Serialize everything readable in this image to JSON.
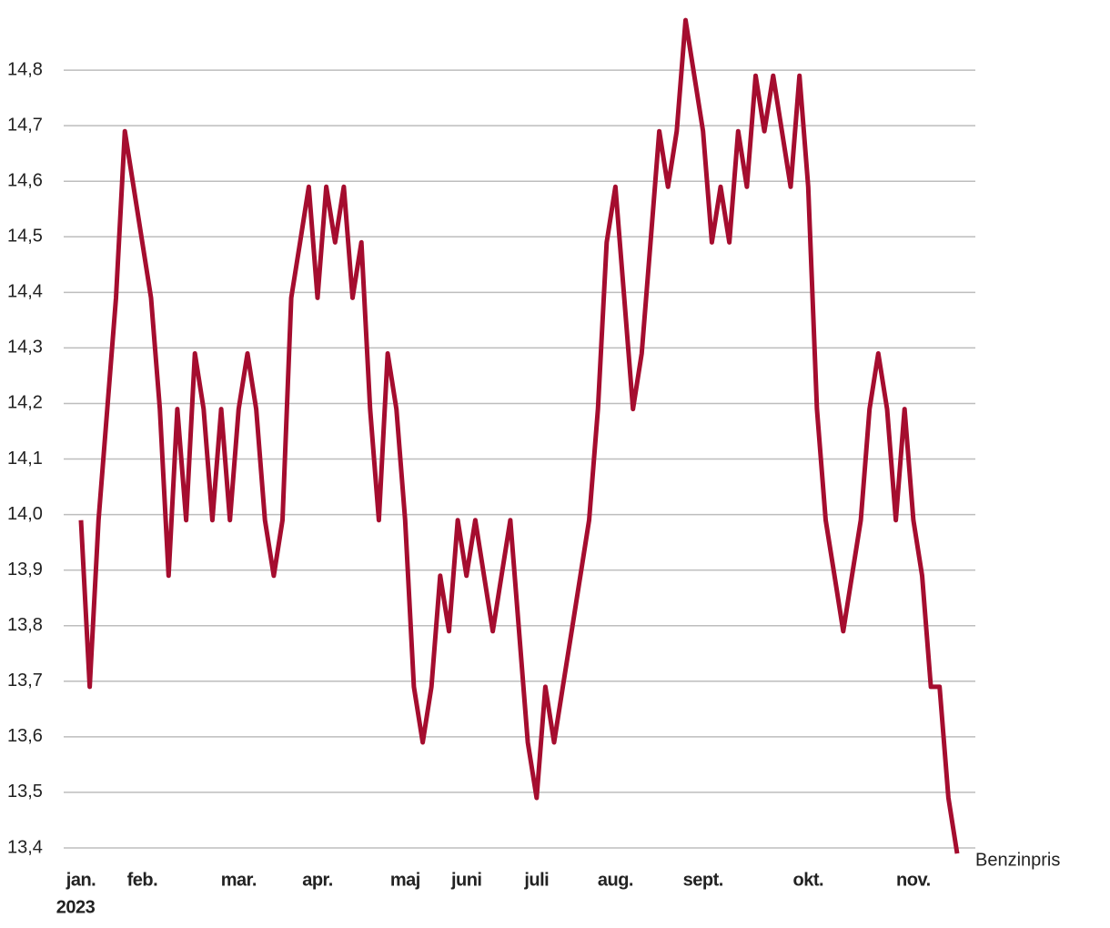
{
  "chart_data": {
    "type": "line",
    "categories": [
      "jan.",
      null,
      null,
      null,
      null,
      null,
      null,
      "feb.",
      null,
      null,
      null,
      null,
      null,
      null,
      null,
      null,
      null,
      null,
      "mar.",
      null,
      null,
      null,
      null,
      null,
      null,
      null,
      null,
      "apr.",
      null,
      null,
      null,
      null,
      null,
      null,
      null,
      null,
      null,
      "maj",
      null,
      null,
      null,
      null,
      null,
      null,
      "juni",
      null,
      null,
      null,
      null,
      null,
      null,
      null,
      "juli",
      null,
      null,
      null,
      null,
      null,
      null,
      null,
      null,
      "aug.",
      null,
      null,
      null,
      null,
      null,
      null,
      null,
      null,
      null,
      "sept.",
      null,
      null,
      null,
      null,
      null,
      null,
      null,
      null,
      null,
      null,
      null,
      "okt.",
      null,
      null,
      null,
      null,
      null,
      null,
      null,
      null,
      null,
      null,
      null,
      "nov.",
      null,
      null,
      null,
      null,
      null
    ],
    "x_year": "2023",
    "series": [
      {
        "name": "Benzinpris",
        "color": "#a50d2f",
        "values": [
          13.99,
          13.69,
          13.99,
          14.19,
          14.39,
          14.69,
          14.59,
          14.49,
          14.39,
          14.19,
          13.89,
          14.19,
          13.99,
          14.29,
          14.19,
          13.99,
          14.19,
          13.99,
          14.19,
          14.29,
          14.19,
          13.99,
          13.89,
          13.99,
          14.39,
          14.49,
          14.59,
          14.39,
          14.59,
          14.49,
          14.59,
          14.39,
          14.49,
          14.19,
          13.99,
          14.29,
          14.19,
          13.99,
          13.69,
          13.59,
          13.69,
          13.89,
          13.79,
          13.99,
          13.89,
          13.99,
          13.89,
          13.79,
          13.89,
          13.99,
          13.79,
          13.59,
          13.49,
          13.69,
          13.59,
          13.69,
          13.79,
          13.89,
          13.99,
          14.19,
          14.49,
          14.59,
          14.39,
          14.19,
          14.29,
          14.49,
          14.69,
          14.59,
          14.69,
          14.89,
          14.79,
          14.69,
          14.49,
          14.59,
          14.49,
          14.69,
          14.59,
          14.79,
          14.69,
          14.79,
          14.69,
          14.59,
          14.79,
          14.59,
          14.19,
          13.99,
          13.89,
          13.79,
          13.89,
          13.99,
          14.19,
          14.29,
          14.19,
          13.99,
          14.19,
          13.99,
          13.89,
          13.69,
          13.69,
          13.49,
          13.39
        ]
      }
    ],
    "ylim": [
      13.4,
      14.9
    ],
    "yticks": [
      {
        "value": 13.4,
        "label": "13,4"
      },
      {
        "value": 13.5,
        "label": "13,5"
      },
      {
        "value": 13.6,
        "label": "13,6"
      },
      {
        "value": 13.7,
        "label": "13,7"
      },
      {
        "value": 13.8,
        "label": "13,8"
      },
      {
        "value": 13.9,
        "label": "13,9"
      },
      {
        "value": 14.0,
        "label": "14,0"
      },
      {
        "value": 14.1,
        "label": "14,1"
      },
      {
        "value": 14.2,
        "label": "14,2"
      },
      {
        "value": 14.3,
        "label": "14,3"
      },
      {
        "value": 14.4,
        "label": "14,4"
      },
      {
        "value": 14.5,
        "label": "14,5"
      },
      {
        "value": 14.6,
        "label": "14,6"
      },
      {
        "value": 14.7,
        "label": "14,7"
      },
      {
        "value": 14.8,
        "label": "14,8"
      }
    ],
    "grid": true
  }
}
